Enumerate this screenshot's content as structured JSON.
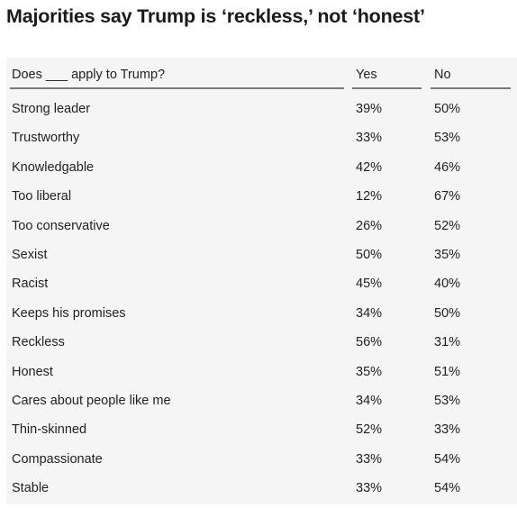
{
  "chart_data": {
    "type": "table",
    "title": "Majorities say Trump is ‘reckless,’ not ‘honest’",
    "columns": [
      "Does ___ apply to Trump?",
      "Yes",
      "No"
    ],
    "rows": [
      {
        "label": "Strong leader",
        "yes": "39%",
        "no": "50%"
      },
      {
        "label": "Trustworthy",
        "yes": "33%",
        "no": "53%"
      },
      {
        "label": "Knowledgable",
        "yes": "42%",
        "no": "46%"
      },
      {
        "label": "Too liberal",
        "yes": "12%",
        "no": "67%"
      },
      {
        "label": "Too conservative",
        "yes": "26%",
        "no": "52%"
      },
      {
        "label": "Sexist",
        "yes": "50%",
        "no": "35%"
      },
      {
        "label": "Racist",
        "yes": "45%",
        "no": "40%"
      },
      {
        "label": "Keeps his promises",
        "yes": "34%",
        "no": "50%"
      },
      {
        "label": "Reckless",
        "yes": "56%",
        "no": "31%"
      },
      {
        "label": "Honest",
        "yes": "35%",
        "no": "51%"
      },
      {
        "label": "Cares about people like me",
        "yes": "34%",
        "no": "53%"
      },
      {
        "label": "Thin-skinned",
        "yes": "52%",
        "no": "33%"
      },
      {
        "label": "Compassionate",
        "yes": "33%",
        "no": "54%"
      },
      {
        "label": "Stable",
        "yes": "33%",
        "no": "54%"
      }
    ]
  }
}
